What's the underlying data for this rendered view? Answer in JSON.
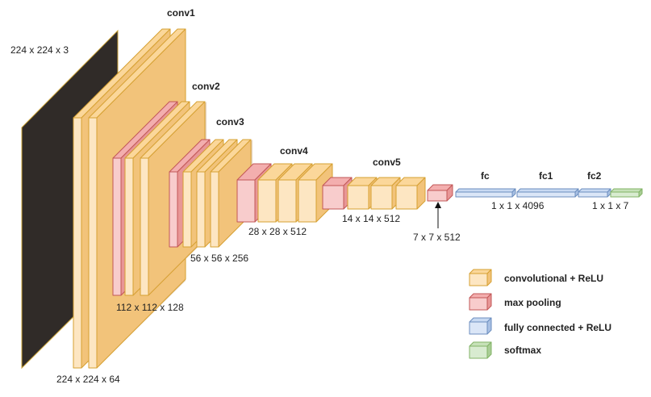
{
  "colors": {
    "conv": {
      "front": "#fde6c2",
      "top": "#fbd79a",
      "side": "#f2c37a",
      "stroke": "#d6a032"
    },
    "pool": {
      "front": "#f8cccc",
      "top": "#f3aeae",
      "side": "#e89696",
      "stroke": "#c25757"
    },
    "fc": {
      "front": "#dbe6f7",
      "top": "#c8d9f2",
      "side": "#a9c0e3",
      "stroke": "#6c8ebf"
    },
    "softmax": {
      "front": "#d8ebd0",
      "top": "#c6e1b8",
      "side": "#a9cd95",
      "stroke": "#82b366"
    },
    "input": {
      "front": "#302b28",
      "stroke": "#c9a137"
    },
    "shadow": "#e6d4bd"
  },
  "labels": {
    "input_dim": "224 x 224 x 3",
    "conv1": "conv1",
    "conv1_dim": "224 x 224 x 64",
    "conv2": "conv2",
    "conv2_dim": "112 x 112 x 128",
    "conv3": "conv3",
    "conv3_dim": "56 x 56 x 256",
    "conv4": "conv4",
    "conv4_dim": "28 x 28 x 512",
    "conv5": "conv5",
    "conv5_dim": "14 x 14 x 512",
    "pool5_dim": "7 x 7 x 512",
    "fc": "fc",
    "fc1": "fc1",
    "fc2": "fc2",
    "fc_dim": "1 x 1 x 4096",
    "fc2_dim": "1 x 1 x 7"
  },
  "legend": {
    "items": [
      {
        "label": "convolutional + ReLU",
        "type": "conv"
      },
      {
        "label": "max pooling",
        "type": "pool"
      },
      {
        "label": "fully connected + ReLU",
        "type": "fc"
      },
      {
        "label": "softmax",
        "type": "softmax"
      }
    ]
  }
}
